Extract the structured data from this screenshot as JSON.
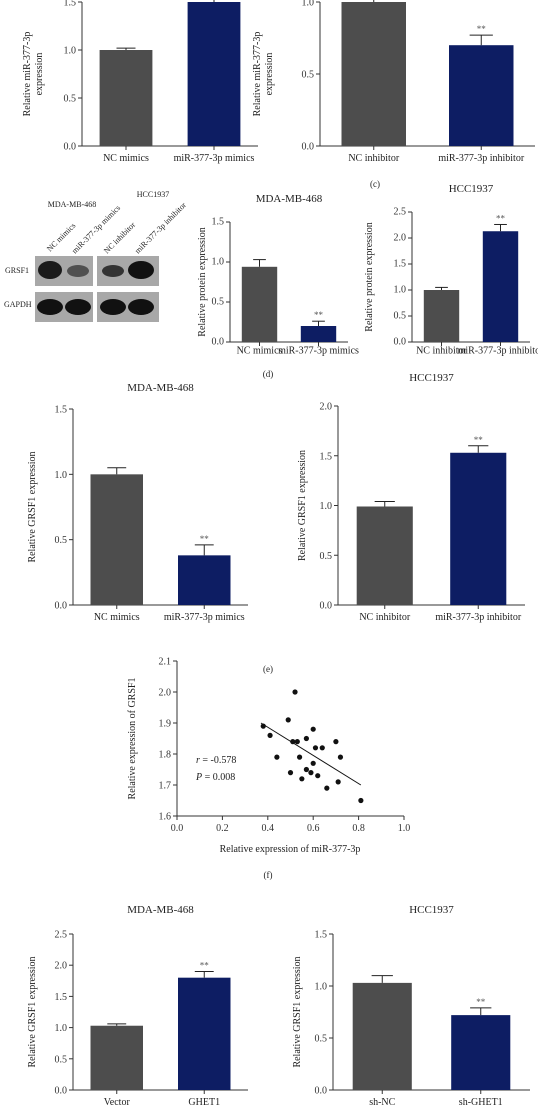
{
  "colors": {
    "nc": "#4d4d4d",
    "treat": "#0d1d63",
    "blot_bg": "#a8a8a8",
    "band": "#1a1a1a"
  },
  "panel_labels": {
    "c": "(c)",
    "d": "(d)",
    "e": "(e)",
    "f": "(f)"
  },
  "western_blot": {
    "cell_lines": [
      "MDA-MB-468",
      "HCC1937"
    ],
    "lanes": [
      "NC mimics",
      "miR-377-3p mimics",
      "NC inhibitor",
      "miR-377-3p inhibitor"
    ],
    "rows": [
      "GRSF1",
      "GAPDH"
    ]
  },
  "chart_data": [
    {
      "id": "c-left",
      "type": "bar",
      "title": "",
      "categories": [
        "NC mimics",
        "miR-377-3p mimics"
      ],
      "values": [
        1.0,
        1.58
      ],
      "errors": [
        0.02,
        0.1
      ],
      "significance": [
        "",
        ""
      ],
      "xlabel": "",
      "ylabel": "Relative miR-377-3p expression",
      "ylim": [
        0,
        1.5
      ],
      "yticks": [
        "0.0",
        "0.5",
        "1.0",
        "1.5"
      ]
    },
    {
      "id": "c-right",
      "type": "bar",
      "title": "",
      "categories": [
        "NC inhibitor",
        "miR-377-3p inhibitor"
      ],
      "values": [
        1.02,
        0.7
      ],
      "errors": [
        0.09,
        0.07
      ],
      "significance": [
        "",
        "**"
      ],
      "xlabel": "",
      "ylabel": "Relative miR-377-3p expression",
      "ylim": [
        0,
        1.0
      ],
      "yticks": [
        "0.0",
        "0.5",
        "1.0"
      ]
    },
    {
      "id": "d-left",
      "type": "bar",
      "title": "MDA-MB-468",
      "categories": [
        "NC mimics",
        "miR-377-3p mimics"
      ],
      "values": [
        0.94,
        0.2
      ],
      "errors": [
        0.09,
        0.06
      ],
      "significance": [
        "",
        "**"
      ],
      "xlabel": "",
      "ylabel": "Relative protein expression",
      "ylim": [
        0,
        1.5
      ],
      "yticks": [
        "0.0",
        "0.5",
        "1.0",
        "1.5"
      ]
    },
    {
      "id": "d-right",
      "type": "bar",
      "title": "HCC1937",
      "categories": [
        "NC inhibitor",
        "miR-377-3p inhibitor"
      ],
      "values": [
        1.0,
        2.13
      ],
      "errors": [
        0.05,
        0.13
      ],
      "significance": [
        "",
        "**"
      ],
      "xlabel": "",
      "ylabel": "Relative protein expression",
      "ylim": [
        0,
        2.5
      ],
      "yticks": [
        "0.0",
        "0.5",
        "1.0",
        "1.5",
        "2.0",
        "2.5"
      ]
    },
    {
      "id": "e-left",
      "type": "bar",
      "title": "MDA-MB-468",
      "categories": [
        "NC mimics",
        "miR-377-3p mimics"
      ],
      "values": [
        1.0,
        0.38
      ],
      "errors": [
        0.05,
        0.08
      ],
      "significance": [
        "",
        "**"
      ],
      "xlabel": "",
      "ylabel": "Relative GRSF1 expression",
      "ylim": [
        0,
        1.5
      ],
      "yticks": [
        "0.0",
        "0.5",
        "1.0",
        "1.5"
      ]
    },
    {
      "id": "e-right",
      "type": "bar",
      "title": "HCC1937",
      "categories": [
        "NC inhibitor",
        "miR-377-3p inhibitor"
      ],
      "values": [
        0.99,
        1.53
      ],
      "errors": [
        0.05,
        0.07
      ],
      "significance": [
        "",
        "**"
      ],
      "xlabel": "",
      "ylabel": "Relative GRSF1 expression",
      "ylim": [
        0,
        2.0
      ],
      "yticks": [
        "0.0",
        "0.5",
        "1.0",
        "1.5",
        "2.0"
      ]
    },
    {
      "id": "f",
      "type": "scatter",
      "title": "",
      "x": [
        0.38,
        0.41,
        0.44,
        0.49,
        0.5,
        0.51,
        0.52,
        0.53,
        0.54,
        0.55,
        0.57,
        0.57,
        0.59,
        0.6,
        0.6,
        0.61,
        0.62,
        0.64,
        0.66,
        0.7,
        0.71,
        0.72,
        0.81
      ],
      "y": [
        1.89,
        1.86,
        1.79,
        1.91,
        1.74,
        1.84,
        2.0,
        1.84,
        1.79,
        1.72,
        1.85,
        1.75,
        1.74,
        1.88,
        1.77,
        1.82,
        1.73,
        1.82,
        1.69,
        1.84,
        1.71,
        1.79,
        1.65
      ],
      "fit": {
        "x": [
          0.37,
          0.81
        ],
        "y": [
          1.9,
          1.7
        ]
      },
      "annotation": {
        "r_label": "r",
        "r_value": " = -0.578",
        "p_label": "P",
        "p_value": " = 0.008"
      },
      "xlabel": "Relative expression of miR-377-3p",
      "ylabel": "Relative expression of GRSF1",
      "xlim": [
        0,
        1.0
      ],
      "xticks": [
        "0.0",
        "0.2",
        "0.4",
        "0.6",
        "0.8",
        "1.0"
      ],
      "ylim": [
        1.6,
        2.1
      ],
      "yticks": [
        "1.6",
        "1.7",
        "1.8",
        "1.9",
        "2.0",
        "2.1"
      ]
    },
    {
      "id": "g-left",
      "type": "bar",
      "title": "MDA-MB-468",
      "categories": [
        "Vector",
        "GHET1"
      ],
      "values": [
        1.03,
        1.8
      ],
      "errors": [
        0.03,
        0.1
      ],
      "significance": [
        "",
        "**"
      ],
      "xlabel": "",
      "ylabel": "Relative GRSF1 expression",
      "ylim": [
        0,
        2.5
      ],
      "yticks": [
        "0.0",
        "0.5",
        "1.0",
        "1.5",
        "2.0",
        "2.5"
      ]
    },
    {
      "id": "g-right",
      "type": "bar",
      "title": "HCC1937",
      "categories": [
        "sh-NC",
        "sh-GHET1"
      ],
      "values": [
        1.03,
        0.72
      ],
      "errors": [
        0.07,
        0.07
      ],
      "significance": [
        "",
        "**"
      ],
      "xlabel": "",
      "ylabel": "Relative GRSF1 expression",
      "ylim": [
        0,
        1.5
      ],
      "yticks": [
        "0.0",
        "0.5",
        "1.0",
        "1.5"
      ]
    }
  ]
}
